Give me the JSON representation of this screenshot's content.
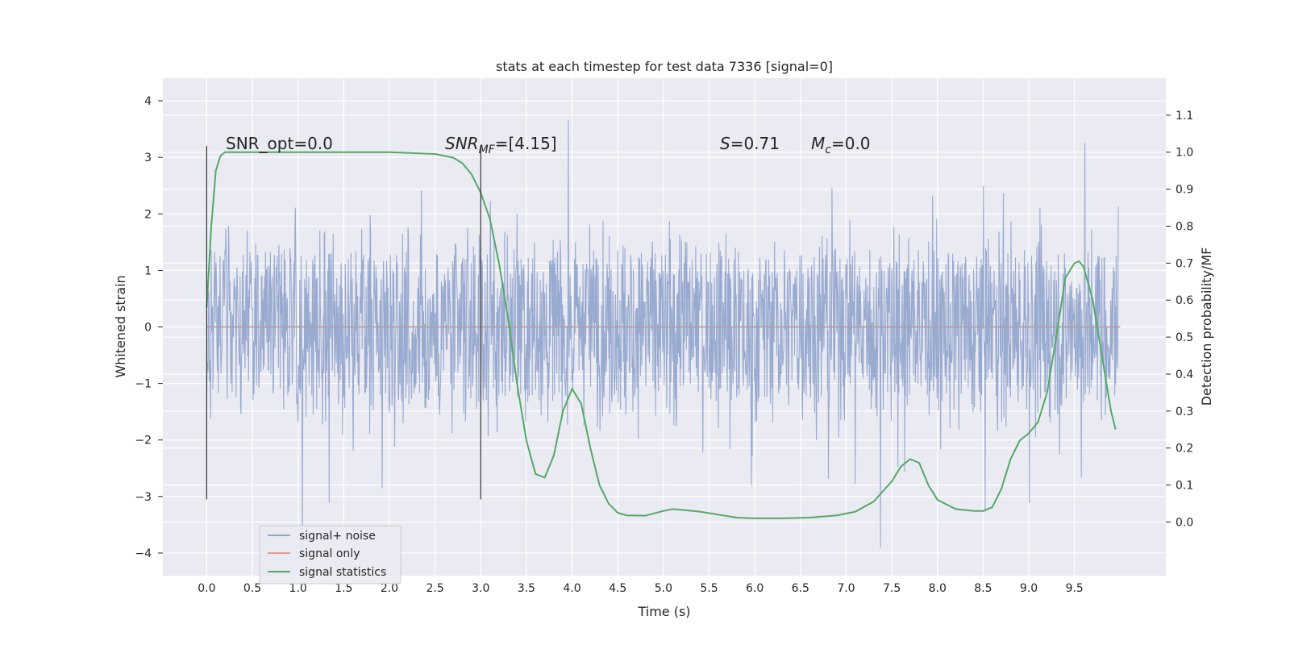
{
  "chart_data": {
    "type": "line",
    "title": "stats at each timestep for test data 7336 [signal=0]",
    "xlabel": "Time (s)",
    "ylabel": "Whitened strain",
    "y2label": "Detection probability/MF",
    "xlim": [
      -0.48,
      10.5
    ],
    "ylim": [
      -4.4,
      4.4
    ],
    "y2lim": [
      -0.145,
      1.2
    ],
    "x_ticks": [
      "0.0",
      "0.5",
      "1.0",
      "1.5",
      "2.0",
      "2.5",
      "3.0",
      "3.5",
      "4.0",
      "4.5",
      "5.0",
      "5.5",
      "6.0",
      "6.5",
      "7.0",
      "7.5",
      "8.0",
      "8.5",
      "9.0",
      "9.5"
    ],
    "y_ticks": [
      "4",
      "3",
      "2",
      "1",
      "0",
      "−1",
      "−2",
      "−3",
      "−4"
    ],
    "y2_ticks": [
      "1.1",
      "1.0",
      "0.9",
      "0.8",
      "0.7",
      "0.6",
      "0.5",
      "0.4",
      "0.3",
      "0.2",
      "0.1",
      "0.0"
    ],
    "grid": true,
    "legend_position": "lower-left",
    "annotations": {
      "snr_opt": "SNR_opt=0.0",
      "snr_mf_prefix": "SNR",
      "snr_mf_sub": "MF",
      "snr_mf_value": "=[4.15]",
      "s_symbol": "S",
      "s_value": "=0.71",
      "mc_symbol": "M",
      "mc_sub": "c",
      "mc_value": "=0.0"
    },
    "markers_x": [
      0.0,
      3.0
    ],
    "markers_ylim": [
      -3.05,
      3.2
    ],
    "series": [
      {
        "name": "signal+ noise",
        "color": "#8fa3cc",
        "x_range": [
          0.0,
          9.98
        ],
        "samples": 2048,
        "typical_amplitude": 1.3,
        "max": 4.05,
        "min": -3.9
      },
      {
        "name": "signal only",
        "color": "#e0a08b",
        "x": [
          0.0,
          10.0
        ],
        "y": [
          0.0,
          0.0
        ]
      },
      {
        "name": "signal statistics",
        "color": "#55a868",
        "axis": "right",
        "x": [
          0.0,
          0.05,
          0.1,
          0.15,
          0.2,
          0.3,
          0.5,
          1.0,
          1.5,
          2.0,
          2.5,
          2.7,
          2.8,
          2.9,
          3.0,
          3.1,
          3.2,
          3.3,
          3.4,
          3.5,
          3.6,
          3.7,
          3.8,
          3.9,
          4.0,
          4.1,
          4.2,
          4.3,
          4.4,
          4.5,
          4.6,
          4.8,
          5.0,
          5.1,
          5.2,
          5.4,
          5.6,
          5.8,
          6.0,
          6.3,
          6.6,
          6.9,
          7.1,
          7.3,
          7.5,
          7.6,
          7.7,
          7.8,
          7.9,
          8.0,
          8.2,
          8.4,
          8.5,
          8.6,
          8.7,
          8.8,
          8.9,
          9.0,
          9.1,
          9.2,
          9.3,
          9.4,
          9.5,
          9.55,
          9.6,
          9.7,
          9.8,
          9.9,
          9.95
        ],
        "y": [
          0.58,
          0.8,
          0.95,
          0.99,
          1.0,
          1.0,
          1.0,
          1.0,
          1.0,
          1.0,
          0.995,
          0.985,
          0.97,
          0.94,
          0.89,
          0.82,
          0.7,
          0.55,
          0.37,
          0.22,
          0.13,
          0.12,
          0.18,
          0.3,
          0.36,
          0.32,
          0.2,
          0.1,
          0.05,
          0.025,
          0.018,
          0.017,
          0.03,
          0.035,
          0.033,
          0.028,
          0.02,
          0.012,
          0.01,
          0.01,
          0.012,
          0.018,
          0.028,
          0.055,
          0.11,
          0.15,
          0.17,
          0.16,
          0.1,
          0.06,
          0.035,
          0.03,
          0.03,
          0.04,
          0.09,
          0.17,
          0.22,
          0.24,
          0.27,
          0.35,
          0.5,
          0.66,
          0.7,
          0.705,
          0.69,
          0.6,
          0.45,
          0.3,
          0.25
        ]
      }
    ]
  }
}
